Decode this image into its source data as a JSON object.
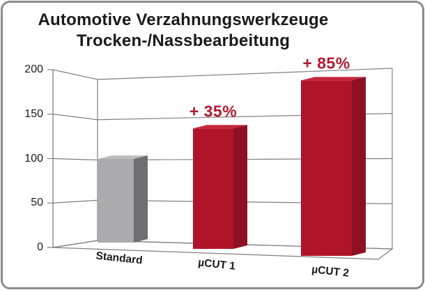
{
  "panel": {
    "background": "#ffffff",
    "border_color": "#8c8c8c"
  },
  "chart_data": {
    "type": "bar",
    "projection": "3d",
    "title": "Automotive Verzahnungswerkzeuge Trocken-/Nassbearbeitung",
    "title_lines": [
      "Automotive Verzahnungswerkzeuge",
      "Trocken-/Nassbearbeitung"
    ],
    "categories": [
      "Standard",
      "µCUT 1",
      "µCUT 2"
    ],
    "values": [
      100,
      135,
      185
    ],
    "annotations": [
      "",
      "+ 35%",
      "+ 85%"
    ],
    "yticks": [
      0,
      50,
      100,
      150,
      200
    ],
    "ylim": [
      0,
      200
    ],
    "xlabel": "",
    "ylabel": "",
    "legend": "none",
    "grid": true,
    "colors": {
      "bars": [
        {
          "front": "#ababad",
          "side": "#6f6f72",
          "top": "#bdbdbf"
        },
        {
          "front": "#b01428",
          "side": "#8d1024",
          "top": "#c5283c"
        },
        {
          "front": "#b01428",
          "side": "#8d1024",
          "top": "#c5283c"
        }
      ],
      "annotation": "#b11a2f",
      "axis": "#7f7f7f",
      "text": "#1a1a1a"
    }
  }
}
